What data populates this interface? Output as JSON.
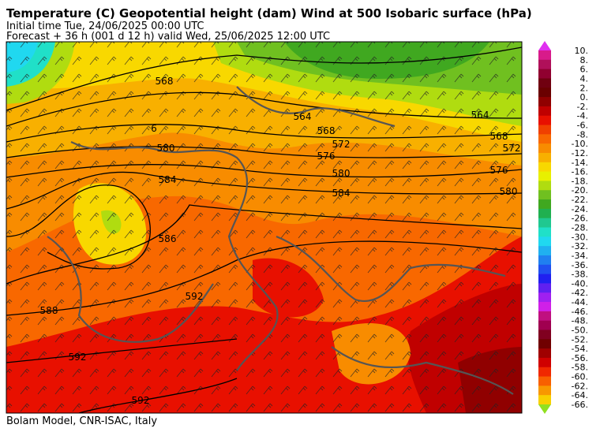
{
  "header": {
    "title": "Temperature (C) Geopotential height (dam) Wind  at 500 Isobaric surface (hPa)",
    "initial_time": "Initial time  Tue, 24/06/2025  00:00 UTC",
    "forecast": "Forecast  +  36 h  (001 d 12 h)  valid Wed, 25/06/2025 12:00 UTC"
  },
  "contour_labels": [
    "564",
    "568",
    "572",
    "576",
    "580",
    "584",
    "588",
    "592",
    "592",
    "592",
    "586",
    "580",
    "584",
    "568",
    "564",
    "576",
    "580",
    "572",
    "568",
    "6"
  ],
  "colorbar": {
    "labels": [
      "10.",
      "8.",
      "6.",
      "4.",
      "2.",
      "0.",
      "-2.",
      "-4.",
      "-6.",
      "-8.",
      "-10.",
      "-12.",
      "-14.",
      "-16.",
      "-18.",
      "-20.",
      "-22.",
      "-24.",
      "-26.",
      "-28.",
      "-30.",
      "-32.",
      "-34.",
      "-36.",
      "-38.",
      "-40.",
      "-42.",
      "-44.",
      "-46.",
      "-48.",
      "-50.",
      "-52.",
      "-54.",
      "-56.",
      "-58.",
      "-60.",
      "-62.",
      "-64.",
      "-66."
    ],
    "colors": [
      "#d81b8a",
      "#b0105a",
      "#900030",
      "#700010",
      "#6a0000",
      "#900000",
      "#c00000",
      "#e81000",
      "#f04000",
      "#f86800",
      "#f88c00",
      "#f8b000",
      "#f8d800",
      "#e8f000",
      "#b0dc10",
      "#70c020",
      "#40a820",
      "#20b050",
      "#20c890",
      "#20e0c8",
      "#20d8f0",
      "#20b0f0",
      "#2080f0",
      "#2050f0",
      "#2020f0",
      "#6020f0",
      "#a020f0",
      "#d020e8",
      "#c01080",
      "#a00050",
      "#800020",
      "#700000",
      "#a00000",
      "#d00000",
      "#f02800",
      "#f86000",
      "#f89800",
      "#f8d000"
    ],
    "over_color": "#e030f0",
    "under_color": "#90e020"
  },
  "footer": "Bolam Model, CNR-ISAC, Italy"
}
